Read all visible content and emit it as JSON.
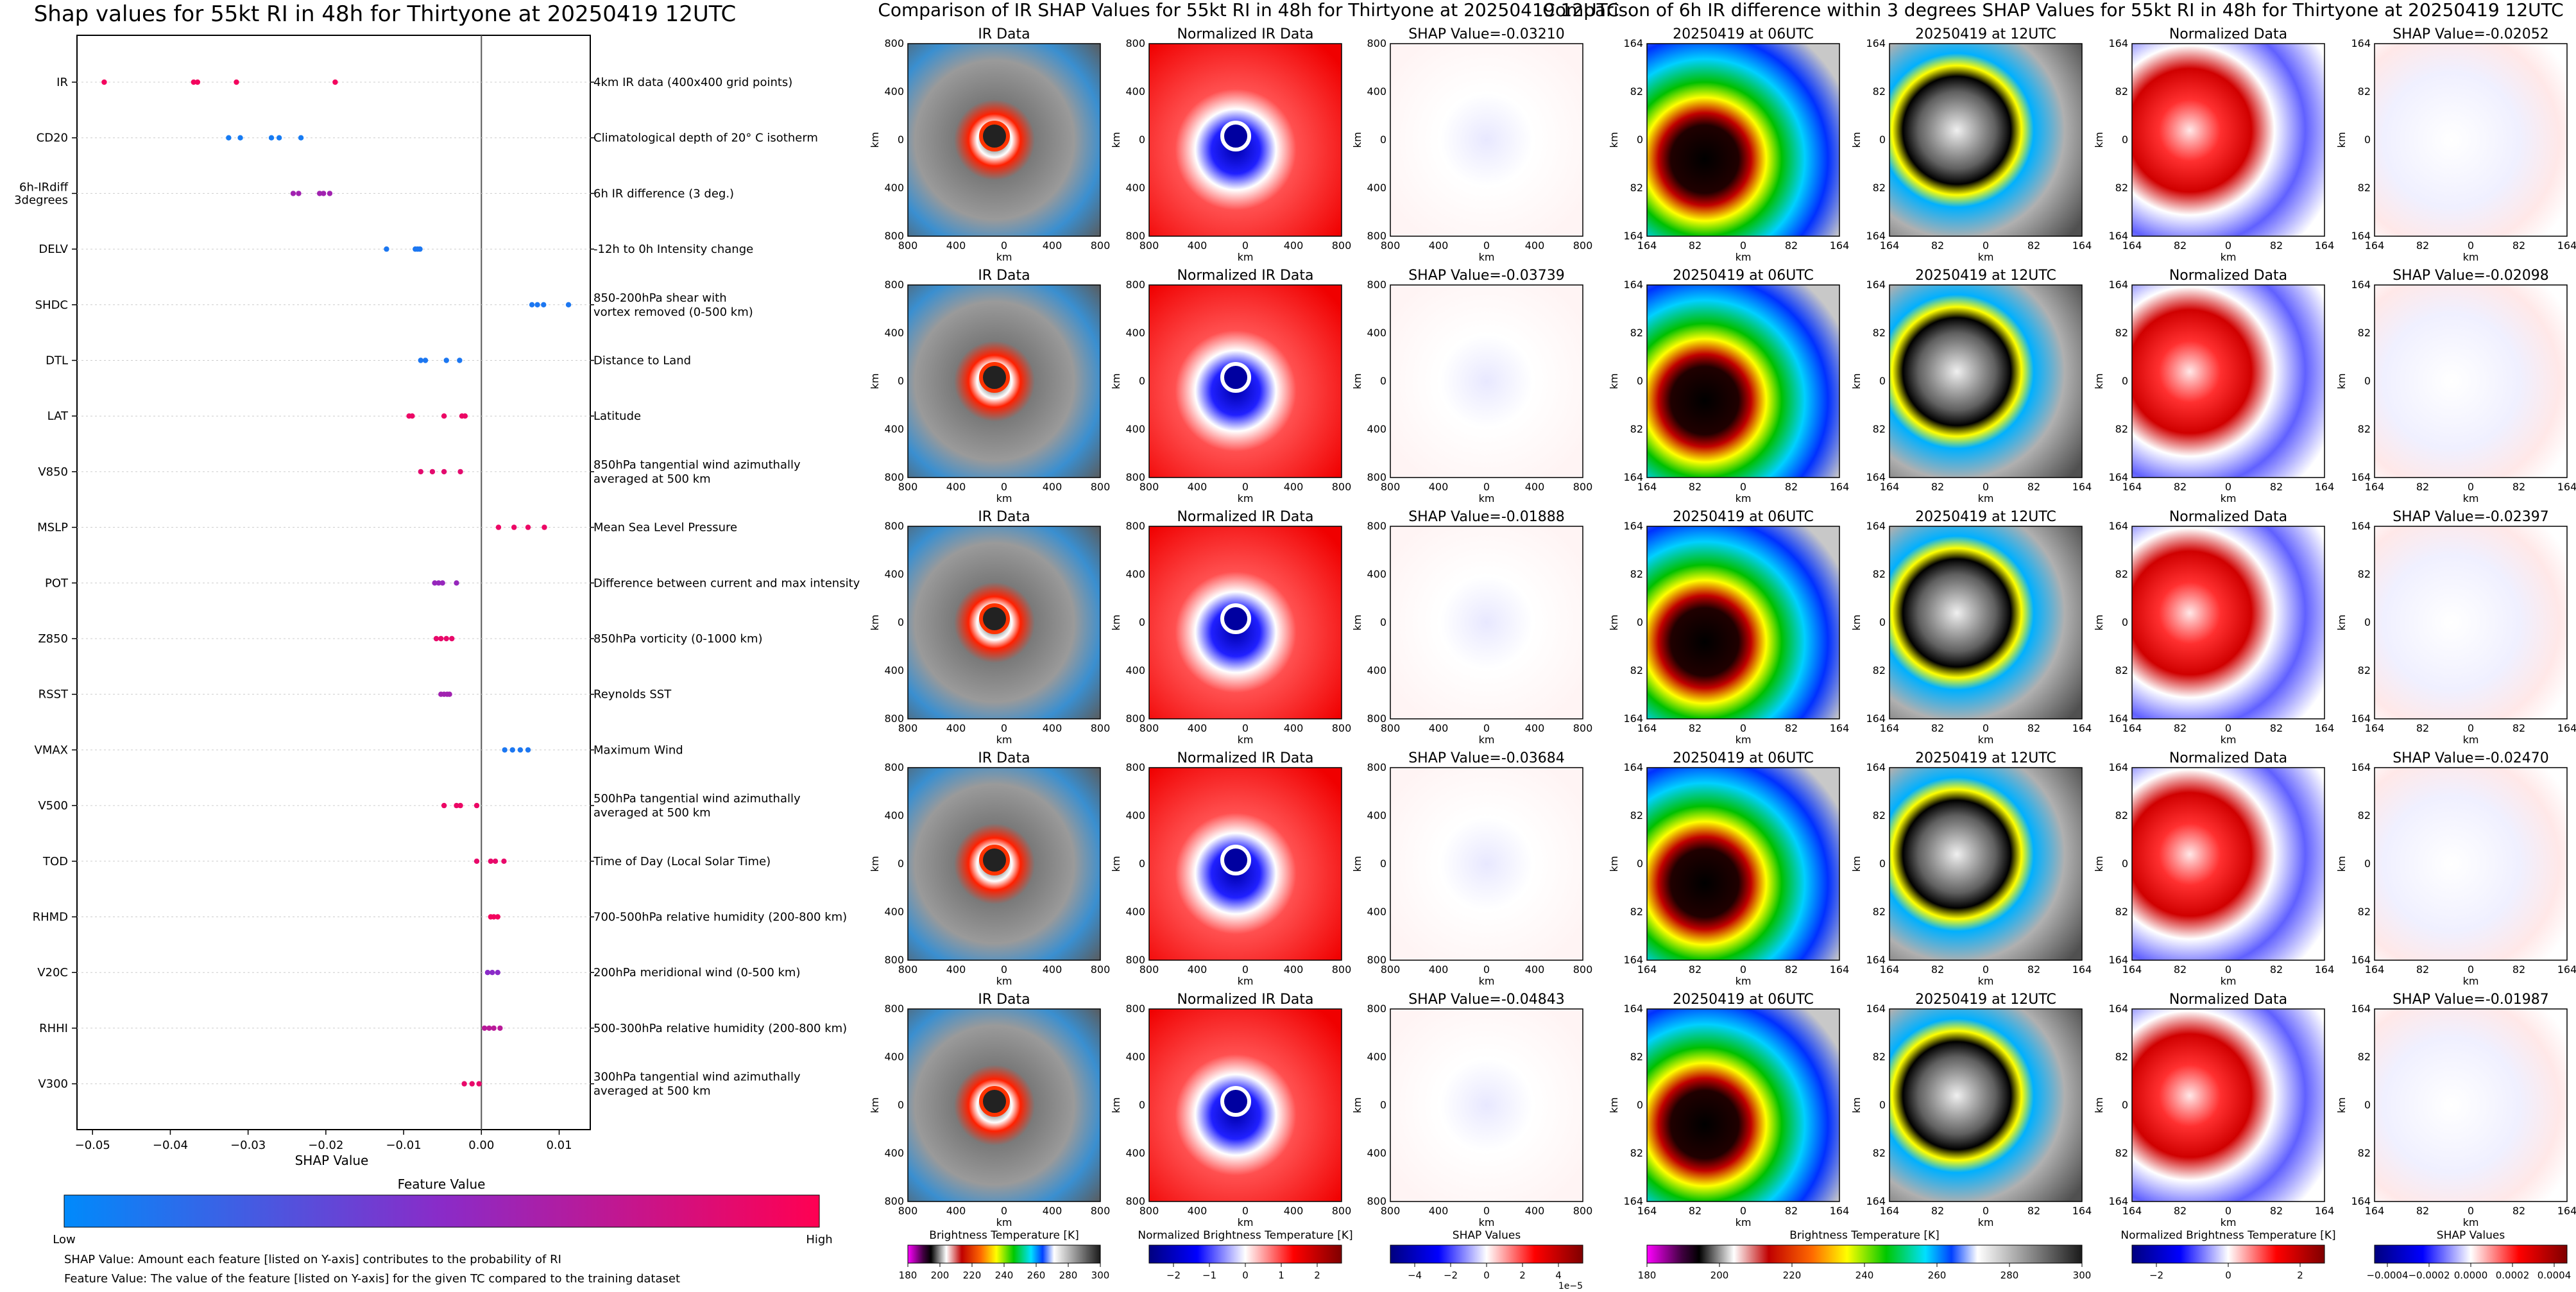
{
  "colors": {
    "feature_low": "#008afb",
    "feature_mid": "#8a2bc8",
    "feature_high": "#ff0052",
    "ir_cmap": [
      "#ff00ff",
      "#000000",
      "#ffffff",
      "#ff0000",
      "#ffa500",
      "#ffff00",
      "#00c800",
      "#00ffff",
      "#0000ff",
      "#ffffff",
      "#404040"
    ],
    "bwr": [
      "#00007f",
      "#0000ff",
      "#ffffff",
      "#ff0000",
      "#7f0000"
    ]
  },
  "left_chart": {
    "title": "Shap values for 55kt RI in 48h for Thirtyone at 20250419 12UTC",
    "xlabel": "SHAP Value",
    "x_ticks": [
      "−0.05",
      "−0.04",
      "−0.03",
      "−0.02",
      "−0.01",
      "0.00",
      "0.01"
    ],
    "colorbar_title": "Feature Value",
    "colorbar_low": "Low",
    "colorbar_high": "High",
    "footnotes": [
      "SHAP Value: Amount each feature [listed on Y-axis] contributes to the probability of RI",
      "Feature Value: The value of the feature [listed on Y-axis] for the given TC compared to the training dataset"
    ]
  },
  "chart_data": [
    {
      "type": "scatter",
      "title": "Shap values for 55kt RI in 48h for Thirtyone at 20250419 12UTC",
      "xlabel": "SHAP Value",
      "xlim": [
        -0.052,
        0.014
      ],
      "features": [
        {
          "name": "IR",
          "desc": [
            "4km IR data (400x400 grid points)"
          ],
          "values": [
            -0.0485,
            -0.037,
            -0.0365,
            -0.0315,
            -0.0188
          ],
          "feature_value": 0.95
        },
        {
          "name": "CD20",
          "desc": [
            "Climatological depth of 20° C isotherm"
          ],
          "values": [
            -0.0325,
            -0.031,
            -0.027,
            -0.026,
            -0.0232
          ],
          "feature_value": 0.08
        },
        {
          "name": "6h-IRdiff\n3degrees",
          "desc": [
            "6h IR difference (3 deg.)"
          ],
          "values": [
            -0.0242,
            -0.0235,
            -0.0208,
            -0.0203,
            -0.0195
          ],
          "feature_value": 0.6
        },
        {
          "name": "DELV",
          "desc": [
            "-12h to 0h Intensity change"
          ],
          "values": [
            -0.0122,
            -0.0085,
            -0.0082,
            -0.0079
          ],
          "feature_value": 0.1
        },
        {
          "name": "SHDC",
          "desc": [
            "850-200hPa shear with",
            "vortex removed (0-500 km)"
          ],
          "values": [
            0.0065,
            0.0072,
            0.008,
            0.0112
          ],
          "feature_value": 0.1
        },
        {
          "name": "DTL",
          "desc": [
            "Distance to Land"
          ],
          "values": [
            -0.0078,
            -0.0072,
            -0.0045,
            -0.0028
          ],
          "feature_value": 0.1
        },
        {
          "name": "LAT",
          "desc": [
            "Latitude"
          ],
          "values": [
            -0.0093,
            -0.0089,
            -0.0048,
            -0.0025,
            -0.0021
          ],
          "feature_value": 0.92
        },
        {
          "name": "V850",
          "desc": [
            "850hPa tangential wind azimuthally",
            "averaged at 500 km"
          ],
          "values": [
            -0.0078,
            -0.0063,
            -0.0048,
            -0.0027
          ],
          "feature_value": 0.88
        },
        {
          "name": "MSLP",
          "desc": [
            "Mean Sea Level Pressure"
          ],
          "values": [
            0.0022,
            0.0042,
            0.006,
            0.0081
          ],
          "feature_value": 0.92
        },
        {
          "name": "POT",
          "desc": [
            "Difference between current and max intensity"
          ],
          "values": [
            -0.006,
            -0.0055,
            -0.005,
            -0.0032
          ],
          "feature_value": 0.55
        },
        {
          "name": "Z850",
          "desc": [
            "850hPa vorticity (0-1000 km)"
          ],
          "values": [
            -0.0058,
            -0.0052,
            -0.0045,
            -0.0038
          ],
          "feature_value": 0.9
        },
        {
          "name": "RSST",
          "desc": [
            "Reynolds SST"
          ],
          "values": [
            -0.0052,
            -0.0048,
            -0.0044,
            -0.0041
          ],
          "feature_value": 0.6
        },
        {
          "name": "VMAX",
          "desc": [
            "Maximum Wind"
          ],
          "values": [
            0.003,
            0.004,
            0.005,
            0.006
          ],
          "feature_value": 0.1
        },
        {
          "name": "V500",
          "desc": [
            "500hPa tangential wind azimuthally",
            "averaged at 500 km"
          ],
          "values": [
            -0.0048,
            -0.0032,
            -0.0027,
            -0.0006
          ],
          "feature_value": 0.92
        },
        {
          "name": "TOD",
          "desc": [
            "Time of Day (Local Solar Time)"
          ],
          "values": [
            -0.0006,
            0.0012,
            0.0018,
            0.0029
          ],
          "feature_value": 0.9
        },
        {
          "name": "RHMD",
          "desc": [
            "700-500hPa relative humidity (200-800 km)"
          ],
          "values": [
            0.0012,
            0.0016,
            0.0021
          ],
          "feature_value": 0.95
        },
        {
          "name": "V20C",
          "desc": [
            "200hPa meridional wind (0-500 km)"
          ],
          "values": [
            0.0008,
            0.0014,
            0.0021
          ],
          "feature_value": 0.5
        },
        {
          "name": "RHHI",
          "desc": [
            "500-300hPa relative humidity (200-800 km)"
          ],
          "values": [
            0.0004,
            0.001,
            0.0016,
            0.0024
          ],
          "feature_value": 0.7
        },
        {
          "name": "V300",
          "desc": [
            "300hPa tangential wind azimuthally",
            "averaged at 500 km"
          ],
          "values": [
            -0.0022,
            -0.0012,
            -0.0003
          ],
          "feature_value": 0.9
        }
      ]
    },
    {
      "type": "heatmap",
      "title": "Comparison of IR SHAP Values for 55kt RI in 48h for Thirtyone at 20250419 12UTC",
      "columns": [
        "IR Data",
        "Normalized IR Data",
        "SHAP Value"
      ],
      "shap_values": [
        "-0.03210",
        "-0.03739",
        "-0.01888",
        "-0.03684",
        "-0.04843"
      ],
      "axis_ticks": [
        "800",
        "400",
        "0",
        "400",
        "800"
      ],
      "axis_label": "km",
      "colorbars": [
        {
          "label": "Brightness Temperature [K]",
          "ticks": [
            "180",
            "200",
            "220",
            "240",
            "260",
            "280",
            "300"
          ]
        },
        {
          "label": "Normalized Brightness Temperature [K]",
          "ticks": [
            "−2",
            "−1",
            "0",
            "1",
            "2"
          ]
        },
        {
          "label": "SHAP Values",
          "ticks": [
            "−4",
            "−2",
            "0",
            "2",
            "4"
          ],
          "offset": "1e−5"
        }
      ]
    },
    {
      "type": "heatmap",
      "title": "Comparison of 6h IR difference within 3 degrees SHAP Values for 55kt RI in 48h for Thirtyone at 20250419 12UTC",
      "columns": [
        "20250419 at 06UTC",
        "20250419 at 12UTC",
        "Normalized Data",
        "SHAP Value"
      ],
      "shap_values": [
        "-0.02052",
        "-0.02098",
        "-0.02397",
        "-0.02470",
        "-0.01987"
      ],
      "axis_ticks": [
        "164",
        "82",
        "0",
        "82",
        "164"
      ],
      "axis_label": "km",
      "colorbars": [
        {
          "label": "Brightness Temperature [K]",
          "ticks": [
            "180",
            "200",
            "220",
            "240",
            "260",
            "280",
            "300"
          ]
        },
        {
          "label": "Normalized Brightness Temperature [K]",
          "ticks": [
            "−2",
            "0",
            "2"
          ]
        },
        {
          "label": "SHAP Values",
          "ticks": [
            "−0.0004",
            "−0.0002",
            "0.0000",
            "0.0002",
            "0.0004"
          ]
        }
      ]
    }
  ]
}
